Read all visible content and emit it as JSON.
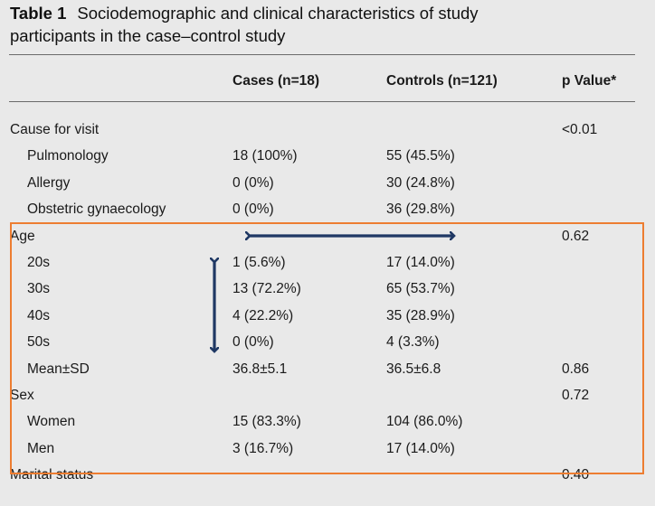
{
  "table": {
    "title_number": "Table 1",
    "title_line1": "Sociodemographic and clinical characteristics of study",
    "title_line2": "participants in the case–control study",
    "headers": [
      "",
      "Cases (n=18)",
      "Controls (n=121)",
      "p Value*"
    ],
    "rows": [
      {
        "label": "Cause for visit",
        "indent": false,
        "cases": "",
        "controls": "",
        "p": "<0.01"
      },
      {
        "label": "Pulmonology",
        "indent": true,
        "cases": "18 (100%)",
        "controls": "55 (45.5%)",
        "p": ""
      },
      {
        "label": "Allergy",
        "indent": true,
        "cases": "0 (0%)",
        "controls": "30 (24.8%)",
        "p": ""
      },
      {
        "label": "Obstetric gynaecology",
        "indent": true,
        "cases": "0 (0%)",
        "controls": "36 (29.8%)",
        "p": ""
      },
      {
        "label": "Age",
        "indent": false,
        "cases": "",
        "controls": "",
        "p": "0.62"
      },
      {
        "label": "20s",
        "indent": true,
        "cases": "1 (5.6%)",
        "controls": "17 (14.0%)",
        "p": ""
      },
      {
        "label": "30s",
        "indent": true,
        "cases": "13 (72.2%)",
        "controls": "65 (53.7%)",
        "p": ""
      },
      {
        "label": "40s",
        "indent": true,
        "cases": "4 (22.2%)",
        "controls": "35 (28.9%)",
        "p": ""
      },
      {
        "label": "50s",
        "indent": true,
        "cases": "0 (0%)",
        "controls": "4 (3.3%)",
        "p": ""
      },
      {
        "label": "Mean±SD",
        "indent": true,
        "cases": "36.8±5.1",
        "controls": "36.5±6.8",
        "p": "0.86"
      },
      {
        "label": "Sex",
        "indent": false,
        "cases": "",
        "controls": "",
        "p": "0.72"
      },
      {
        "label": "Women",
        "indent": true,
        "cases": "15 (83.3%)",
        "controls": "104 (86.0%)",
        "p": ""
      },
      {
        "label": "Men",
        "indent": true,
        "cases": "3 (16.7%)",
        "controls": "17 (14.0%)",
        "p": ""
      },
      {
        "label": "Marital status",
        "indent": false,
        "cases": "",
        "controls": "",
        "p": "0.40"
      }
    ]
  },
  "annotations": {
    "highlight_color": "#ed7d31",
    "arrow_color": "#1f3864"
  }
}
